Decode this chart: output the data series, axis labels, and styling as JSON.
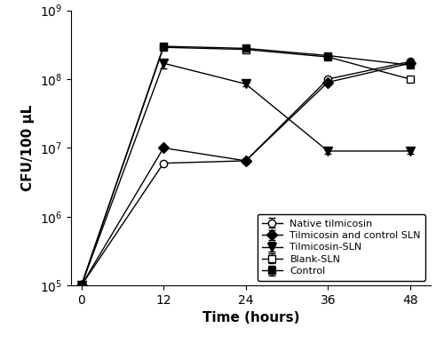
{
  "time": [
    0,
    12,
    24,
    36,
    48
  ],
  "native_tilmicosin": [
    100000.0,
    6000000.0,
    6500000.0,
    100000000.0,
    180000000.0
  ],
  "native_tilmicosin_err": [
    0,
    0,
    300000.0,
    0,
    6000000.0
  ],
  "tilmicosin_control_sln": [
    100000.0,
    10000000.0,
    6500000.0,
    90000000.0,
    170000000.0
  ],
  "tilmicosin_control_sln_err": [
    0,
    0,
    300000.0,
    0,
    6000000.0
  ],
  "tilmicosin_sln": [
    100000.0,
    170000000.0,
    85000000.0,
    9000000.0,
    9000000.0
  ],
  "tilmicosin_sln_err": [
    0,
    25000000.0,
    5000000.0,
    800000.0,
    800000.0
  ],
  "blank_sln": [
    100000.0,
    290000000.0,
    270000000.0,
    210000000.0,
    100000000.0
  ],
  "blank_sln_err": [
    0,
    8000000.0,
    6000000.0,
    6000000.0,
    5000000.0
  ],
  "control": [
    100000.0,
    300000000.0,
    280000000.0,
    220000000.0,
    160000000.0
  ],
  "control_err": [
    0,
    5000000.0,
    5000000.0,
    5000000.0,
    5000000.0
  ],
  "xlabel": "Time (hours)",
  "ylabel": "CFU/100 μL",
  "xlim": [
    -1.5,
    51
  ],
  "ylim_log": [
    5,
    9
  ],
  "xticks": [
    0,
    12,
    24,
    36,
    48
  ],
  "legend_labels": [
    "Native tilmicosin",
    "Tilmicosin and control SLN",
    "Tilmicosin-SLN",
    "Blank-SLN",
    "Control"
  ],
  "line_color": "black",
  "figsize": [
    5.0,
    3.87
  ],
  "dpi": 100
}
